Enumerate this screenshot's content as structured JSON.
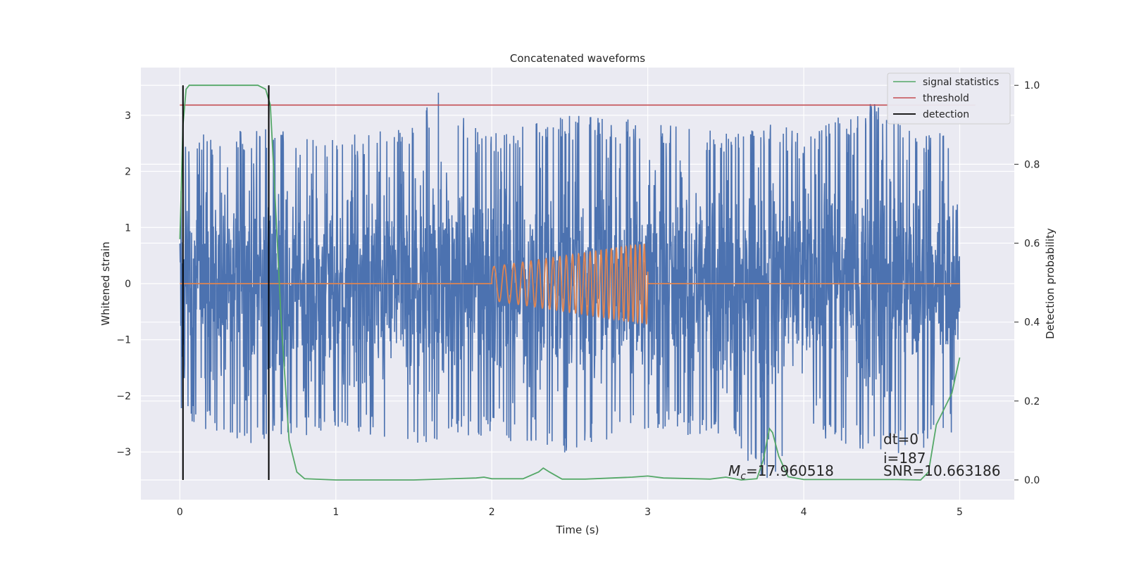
{
  "chart_data": {
    "type": "line",
    "title": "Concatenated waveforms",
    "xlabel": "Time (s)",
    "ylabel": "Whitened strain",
    "y2label": "Detection probability",
    "xlim": [
      -0.25,
      5.35
    ],
    "ylim": [
      -3.85,
      3.85
    ],
    "y2lim": [
      -0.05,
      1.045
    ],
    "x_ticks": [
      0,
      1,
      2,
      3,
      4,
      5
    ],
    "y_ticks": [
      -3,
      -2,
      -1,
      0,
      1,
      2,
      3
    ],
    "y2_ticks": [
      0.0,
      0.2,
      0.4,
      0.6,
      0.8,
      1.0
    ],
    "x_tick_labels": [
      "0",
      "1",
      "2",
      "3",
      "4",
      "5"
    ],
    "y_tick_labels": [
      "−3",
      "−2",
      "−1",
      "0",
      "1",
      "2",
      "3"
    ],
    "y2_tick_labels": [
      "0.0",
      "0.2",
      "0.4",
      "0.6",
      "0.8",
      "1.0"
    ],
    "grid": true,
    "legend_position": "top-right",
    "noise_envelope": {
      "x": [
        0,
        0.5,
        1,
        1.5,
        1.65,
        2,
        2.3,
        2.5,
        3,
        3.5,
        3.8,
        4,
        4.5,
        4.7,
        5
      ],
      "upper": [
        2.6,
        2.8,
        2.6,
        2.9,
        3.45,
        2.7,
        3.05,
        3.0,
        2.9,
        2.7,
        2.9,
        2.7,
        3.3,
        2.8,
        2.6
      ],
      "lower": [
        -2.4,
        -3.0,
        -2.6,
        -2.9,
        -2.8,
        -2.7,
        -3.05,
        -3.0,
        -2.6,
        -2.8,
        -3.65,
        -2.9,
        -3.0,
        -3.1,
        -2.6
      ]
    },
    "series": [
      {
        "name": "signal statistics",
        "color": "#55a868",
        "axis": "right",
        "x": [
          0,
          0.02,
          0.04,
          0.06,
          0.1,
          0.2,
          0.5,
          0.55,
          0.58,
          0.6,
          0.65,
          0.7,
          0.75,
          0.8,
          1.0,
          1.5,
          1.9,
          1.95,
          2.0,
          2.2,
          2.3,
          2.33,
          2.37,
          2.45,
          2.6,
          2.9,
          3.0,
          3.1,
          3.4,
          3.5,
          3.6,
          3.7,
          3.74,
          3.78,
          3.8,
          3.84,
          3.9,
          4.0,
          4.6,
          4.75,
          4.8,
          4.85,
          4.9,
          4.95,
          5.0
        ],
        "values": [
          0.61,
          0.9,
          0.99,
          1.0,
          1.0,
          1.0,
          1.0,
          0.99,
          0.95,
          0.8,
          0.4,
          0.1,
          0.02,
          0.003,
          0.0,
          0.0,
          0.005,
          0.007,
          0.003,
          0.003,
          0.02,
          0.03,
          0.02,
          0.002,
          0.002,
          0.007,
          0.01,
          0.005,
          0.002,
          0.007,
          0.0,
          0.003,
          0.05,
          0.13,
          0.12,
          0.06,
          0.008,
          0.001,
          0.001,
          0.0,
          0.02,
          0.14,
          0.18,
          0.22,
          0.31
        ]
      },
      {
        "name": "threshold",
        "color": "#c44e52",
        "axis": "right",
        "x": [
          0,
          5.1
        ],
        "values": [
          0.95,
          0.95
        ]
      },
      {
        "name": "detection",
        "color": "#000000",
        "axis": "right",
        "x_positions": [
          0.02,
          0.57
        ],
        "range": [
          0.0,
          1.0
        ]
      },
      {
        "name": "",
        "color": "#4c72b0",
        "axis": "left",
        "description": "whitened noise strain"
      },
      {
        "name": "",
        "color": "#dd8452",
        "axis": "left",
        "chirp_start": 2.0,
        "chirp_end": 3.0,
        "chirp_amp_start": 0.3,
        "chirp_amp_end": 0.72
      }
    ],
    "annotations": {
      "dt": "dt=0",
      "i": "i=187",
      "snr": "SNR=10.663186",
      "mc_value": "=17.960518"
    }
  }
}
